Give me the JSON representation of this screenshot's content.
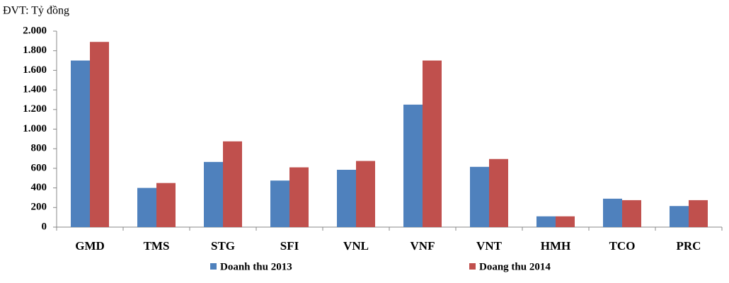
{
  "chart_data": {
    "type": "bar",
    "unit_label": "ĐVT: Tỷ đồng",
    "categories": [
      "GMD",
      "TMS",
      "STG",
      "SFI",
      "VNL",
      "VNF",
      "VNT",
      "HMH",
      "TCO",
      "PRC"
    ],
    "series": [
      {
        "name": "Doanh thu 2013",
        "color": "#4f81bd",
        "values": [
          1700,
          400,
          665,
          475,
          585,
          1250,
          615,
          110,
          290,
          215
        ]
      },
      {
        "name": "Doang thu 2014",
        "color": "#c0504d",
        "values": [
          1890,
          450,
          875,
          610,
          675,
          1700,
          695,
          110,
          275,
          275
        ]
      }
    ],
    "ylim": [
      0,
      2000
    ],
    "yticks": [
      0,
      200,
      400,
      600,
      800,
      {
        "value": 1000,
        "label": "1.000"
      },
      {
        "value": 1200,
        "label": "1.200"
      },
      {
        "value": 1400,
        "label": "1.400"
      },
      {
        "value": 1600,
        "label": "1.600"
      },
      {
        "value": 1800,
        "label": "1.800"
      },
      {
        "value": 2000,
        "label": "2.000"
      }
    ],
    "grid": false,
    "legend": "bottom"
  }
}
